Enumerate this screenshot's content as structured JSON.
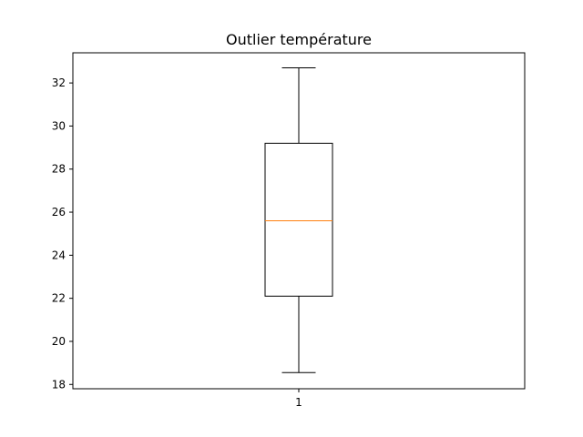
{
  "chart_data": {
    "type": "box",
    "title": "Outlier température",
    "xlabel": "",
    "ylabel": "",
    "categories": [
      "1"
    ],
    "ylim": [
      17.8,
      33.4
    ],
    "yticks": [
      18,
      20,
      22,
      24,
      26,
      28,
      30,
      32
    ],
    "grid": false,
    "boxes": [
      {
        "category": "1",
        "whisker_low": 18.55,
        "q1": 22.1,
        "median": 25.6,
        "q3": 29.2,
        "whisker_high": 32.7
      }
    ],
    "colors": {
      "box": "#000000",
      "median": "#ff7f0e",
      "axes": "#000000"
    }
  }
}
